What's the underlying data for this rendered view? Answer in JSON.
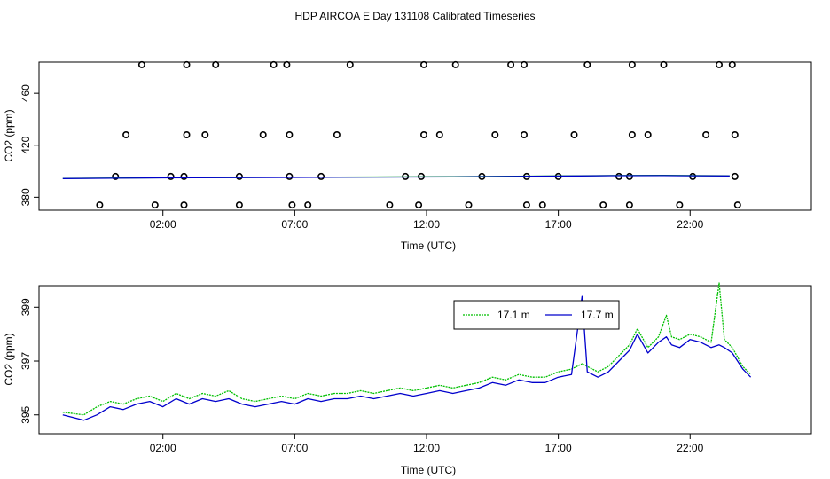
{
  "figure": {
    "title": "HDP AIRCOA E  Day 131108  Calibrated Timeseries"
  },
  "colors": {
    "series_a": "#00c000",
    "series_b": "#0000cc",
    "markers": "#000000",
    "axis": "#000000"
  },
  "chart_data": [
    {
      "type": "scatter",
      "xlabel": "Time (UTC)",
      "ylabel": "CO2 (ppm)",
      "x_unit": "hours UTC",
      "xlim": [
        -2.7,
        26.6
      ],
      "ylim": [
        370,
        484
      ],
      "xticks": [
        2,
        7,
        12,
        17,
        22
      ],
      "xtick_labels": [
        "02:00",
        "07:00",
        "12:00",
        "17:00",
        "22:00"
      ],
      "yticks": [
        380,
        420,
        460
      ],
      "ytick_labels": [
        "380",
        "420",
        "460"
      ],
      "points": [
        {
          "x": 1.2,
          "y": 482
        },
        {
          "x": 2.9,
          "y": 482
        },
        {
          "x": 4.0,
          "y": 482
        },
        {
          "x": 6.2,
          "y": 482
        },
        {
          "x": 6.7,
          "y": 482
        },
        {
          "x": 9.1,
          "y": 482
        },
        {
          "x": 11.9,
          "y": 482
        },
        {
          "x": 13.1,
          "y": 482
        },
        {
          "x": 15.2,
          "y": 482
        },
        {
          "x": 15.7,
          "y": 482
        },
        {
          "x": 18.1,
          "y": 482
        },
        {
          "x": 19.8,
          "y": 482
        },
        {
          "x": 21.0,
          "y": 482
        },
        {
          "x": 23.1,
          "y": 482
        },
        {
          "x": 23.6,
          "y": 482
        },
        {
          "x": 0.6,
          "y": 428
        },
        {
          "x": 2.9,
          "y": 428
        },
        {
          "x": 3.6,
          "y": 428
        },
        {
          "x": 5.8,
          "y": 428
        },
        {
          "x": 6.8,
          "y": 428
        },
        {
          "x": 8.6,
          "y": 428
        },
        {
          "x": 11.9,
          "y": 428
        },
        {
          "x": 12.5,
          "y": 428
        },
        {
          "x": 14.6,
          "y": 428
        },
        {
          "x": 15.7,
          "y": 428
        },
        {
          "x": 17.6,
          "y": 428
        },
        {
          "x": 19.8,
          "y": 428
        },
        {
          "x": 20.4,
          "y": 428
        },
        {
          "x": 22.6,
          "y": 428
        },
        {
          "x": 23.7,
          "y": 428
        },
        {
          "x": 0.2,
          "y": 396
        },
        {
          "x": 2.3,
          "y": 396
        },
        {
          "x": 2.8,
          "y": 396
        },
        {
          "x": 4.9,
          "y": 396
        },
        {
          "x": 6.8,
          "y": 396
        },
        {
          "x": 8.0,
          "y": 396
        },
        {
          "x": 11.2,
          "y": 396
        },
        {
          "x": 11.8,
          "y": 396
        },
        {
          "x": 14.1,
          "y": 396
        },
        {
          "x": 15.8,
          "y": 396
        },
        {
          "x": 17.0,
          "y": 396
        },
        {
          "x": 19.3,
          "y": 396
        },
        {
          "x": 19.7,
          "y": 396
        },
        {
          "x": 22.1,
          "y": 396
        },
        {
          "x": 23.7,
          "y": 396
        },
        {
          "x": -0.4,
          "y": 374
        },
        {
          "x": 1.7,
          "y": 374
        },
        {
          "x": 2.8,
          "y": 374
        },
        {
          "x": 4.9,
          "y": 374
        },
        {
          "x": 6.9,
          "y": 374
        },
        {
          "x": 7.5,
          "y": 374
        },
        {
          "x": 10.6,
          "y": 374
        },
        {
          "x": 11.7,
          "y": 374
        },
        {
          "x": 13.6,
          "y": 374
        },
        {
          "x": 15.8,
          "y": 374
        },
        {
          "x": 16.4,
          "y": 374
        },
        {
          "x": 18.7,
          "y": 374
        },
        {
          "x": 19.7,
          "y": 374
        },
        {
          "x": 21.6,
          "y": 374
        },
        {
          "x": 23.8,
          "y": 374
        }
      ],
      "series": [
        {
          "x": [
            -1.8,
            2,
            6,
            10,
            13,
            16,
            17.8,
            19,
            21,
            23.5
          ],
          "values": [
            394.5,
            395.0,
            395.3,
            395.6,
            395.8,
            396.3,
            396.5,
            396.7,
            396.8,
            396.5
          ]
        },
        {
          "x": [
            -1.8,
            2,
            6,
            10,
            13,
            16,
            17.8,
            19,
            21,
            23.5
          ],
          "values": [
            394.4,
            394.9,
            395.2,
            395.5,
            395.7,
            396.2,
            396.4,
            396.6,
            396.7,
            396.4
          ]
        }
      ]
    },
    {
      "type": "line",
      "xlabel": "Time (UTC)",
      "ylabel": "CO2 (ppm)",
      "xlim": [
        -2.7,
        26.6
      ],
      "ylim": [
        394.3,
        399.8
      ],
      "xticks": [
        2,
        7,
        12,
        17,
        22
      ],
      "xtick_labels": [
        "02:00",
        "07:00",
        "12:00",
        "17:00",
        "22:00"
      ],
      "yticks": [
        395,
        397,
        399
      ],
      "ytick_labels": [
        "395",
        "397",
        "399"
      ],
      "legend": {
        "placement": "top-right"
      },
      "series": [
        {
          "name": "17.1 m",
          "x": [
            -1.8,
            -1.0,
            -0.5,
            0.0,
            0.5,
            1.0,
            1.5,
            2.0,
            2.5,
            3.0,
            3.5,
            4.0,
            4.5,
            5.0,
            5.5,
            6.0,
            6.5,
            7.0,
            7.5,
            8.0,
            8.5,
            9.0,
            9.5,
            10.0,
            10.5,
            11.0,
            11.5,
            12.0,
            12.5,
            13.0,
            13.5,
            14.0,
            14.5,
            15.0,
            15.5,
            16.0,
            16.5,
            17.0,
            17.5,
            17.9,
            18.1,
            18.5,
            18.9,
            19.3,
            19.7,
            20.0,
            20.4,
            20.8,
            21.1,
            21.3,
            21.6,
            22.0,
            22.4,
            22.8,
            23.1,
            23.3,
            23.6,
            24.0,
            24.3
          ],
          "values": [
            395.1,
            395.0,
            395.3,
            395.5,
            395.4,
            395.6,
            395.7,
            395.5,
            395.8,
            395.6,
            395.8,
            395.7,
            395.9,
            395.6,
            395.5,
            395.6,
            395.7,
            395.6,
            395.8,
            395.7,
            395.8,
            395.8,
            395.9,
            395.8,
            395.9,
            396.0,
            395.9,
            396.0,
            396.1,
            396.0,
            396.1,
            396.2,
            396.4,
            396.3,
            396.5,
            396.4,
            396.4,
            396.6,
            396.7,
            396.9,
            396.8,
            396.6,
            396.8,
            397.2,
            397.6,
            398.2,
            397.5,
            397.9,
            398.7,
            397.9,
            397.8,
            398.0,
            397.9,
            397.7,
            399.9,
            397.8,
            397.5,
            396.8,
            396.5
          ]
        },
        {
          "name": "17.7 m",
          "x": [
            -1.8,
            -1.0,
            -0.5,
            0.0,
            0.5,
            1.0,
            1.5,
            2.0,
            2.5,
            3.0,
            3.5,
            4.0,
            4.5,
            5.0,
            5.5,
            6.0,
            6.5,
            7.0,
            7.5,
            8.0,
            8.5,
            9.0,
            9.5,
            10.0,
            10.5,
            11.0,
            11.5,
            12.0,
            12.5,
            13.0,
            13.5,
            14.0,
            14.5,
            15.0,
            15.5,
            16.0,
            16.5,
            17.0,
            17.5,
            17.9,
            18.1,
            18.5,
            18.9,
            19.3,
            19.7,
            20.0,
            20.4,
            20.8,
            21.1,
            21.3,
            21.6,
            22.0,
            22.4,
            22.8,
            23.1,
            23.3,
            23.6,
            24.0,
            24.3
          ],
          "values": [
            395.0,
            394.8,
            395.0,
            395.3,
            395.2,
            395.4,
            395.5,
            395.3,
            395.6,
            395.4,
            395.6,
            395.5,
            395.6,
            395.4,
            395.3,
            395.4,
            395.5,
            395.4,
            395.6,
            395.5,
            395.6,
            395.6,
            395.7,
            395.6,
            395.7,
            395.8,
            395.7,
            395.8,
            395.9,
            395.8,
            395.9,
            396.0,
            396.2,
            396.1,
            396.3,
            396.2,
            396.2,
            396.4,
            396.5,
            399.4,
            396.6,
            396.4,
            396.6,
            397.0,
            397.4,
            398.0,
            397.3,
            397.7,
            397.9,
            397.6,
            397.5,
            397.8,
            397.7,
            397.5,
            397.6,
            397.5,
            397.3,
            396.7,
            396.4
          ]
        }
      ]
    }
  ]
}
